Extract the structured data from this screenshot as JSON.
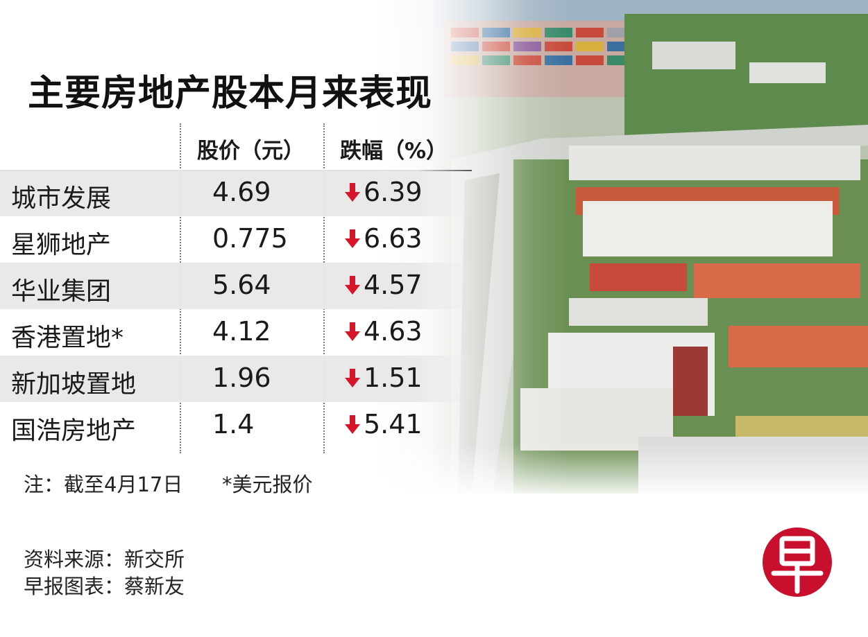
{
  "chart_data": {
    "type": "table",
    "title": "主要房地产股本月来表现",
    "columns": [
      "股价（元）",
      "跌幅（%）"
    ],
    "rows": [
      {
        "name": "城市发展",
        "price": "4.69",
        "change": "6.39",
        "direction": "down"
      },
      {
        "name": "星狮地产",
        "price": "0.775",
        "change": "6.63",
        "direction": "down"
      },
      {
        "name": "华业集团",
        "price": "5.64",
        "change": "4.57",
        "direction": "down"
      },
      {
        "name": "香港置地*",
        "price": "4.12",
        "change": "4.63",
        "direction": "down"
      },
      {
        "name": "新加坡置地",
        "price": "1.96",
        "change": "1.51",
        "direction": "down"
      },
      {
        "name": "国浩房地产",
        "price": "1.4",
        "change": "5.41",
        "direction": "down"
      }
    ]
  },
  "notes": {
    "date_note": "注：截至4月17日",
    "usd_note": "*美元报价"
  },
  "source": "资料来源：新交所",
  "credit": "早报图表：蔡新友",
  "logo": {
    "glyph": "早",
    "color": "#c8102e"
  },
  "colors": {
    "arrow": "#d7152a",
    "row_shade": "#e8e8e8"
  }
}
